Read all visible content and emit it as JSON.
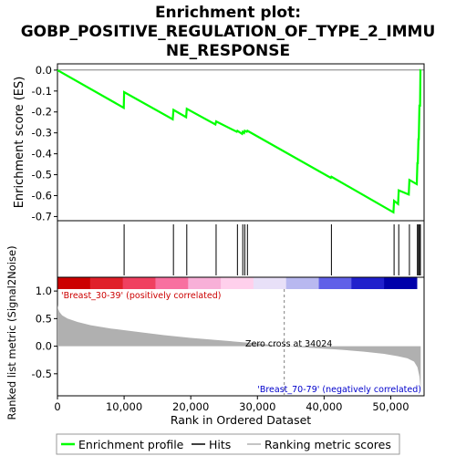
{
  "title_line1": "Enrichment plot:",
  "title_line2": "GOBP_POSITIVE_REGULATION_OF_TYPE_2_IMMU",
  "title_line3": "NE_RESPONSE",
  "colors": {
    "es_line": "#00ff00",
    "hit": "#000000",
    "metric_fill": "#b0b0b0",
    "pos_label": "#cc0000",
    "neg_label": "#0000cc",
    "zero_line": "#808080"
  },
  "chart_data": [
    {
      "type": "line",
      "name": "es",
      "ylabel": "Enrichment score (ES)",
      "xlim": [
        0,
        55000
      ],
      "ylim": [
        -0.72,
        0.03
      ],
      "yticks": [
        0.0,
        -0.1,
        -0.2,
        -0.3,
        -0.4,
        -0.5,
        -0.6,
        -0.7
      ],
      "ytick_labels": [
        "0.0",
        "-0.1",
        "-0.2",
        "-0.3",
        "-0.4",
        "-0.5",
        "-0.6",
        "-0.7"
      ],
      "grid": false,
      "x": [
        0,
        9950,
        10000,
        17300,
        17400,
        19300,
        19400,
        23700,
        23800,
        26900,
        27000,
        27700,
        27800,
        28000,
        28100,
        28400,
        28500,
        41000,
        41100,
        50400,
        50500,
        51100,
        51200,
        52700,
        52800,
        53900,
        54000,
        54050,
        54150,
        54200,
        54300,
        54400,
        54450,
        54500
      ],
      "y": [
        0.0,
        -0.18,
        -0.105,
        -0.235,
        -0.19,
        -0.225,
        -0.185,
        -0.26,
        -0.245,
        -0.295,
        -0.29,
        -0.305,
        -0.295,
        -0.3,
        -0.29,
        -0.295,
        -0.29,
        -0.515,
        -0.51,
        -0.68,
        -0.625,
        -0.64,
        -0.575,
        -0.595,
        -0.525,
        -0.545,
        -0.44,
        -0.45,
        -0.33,
        -0.33,
        -0.17,
        -0.17,
        0.0,
        0.0
      ]
    },
    {
      "type": "scatter",
      "name": "hits",
      "x": [
        10000,
        17400,
        19400,
        23800,
        27000,
        27800,
        28100,
        28500,
        41100,
        50500,
        51200,
        52800,
        54000,
        54150,
        54300,
        54450
      ]
    },
    {
      "type": "area",
      "name": "ranked_metric",
      "ylabel": "Ranked list metric (Signal2Noise)",
      "xlabel": "Rank in Ordered Dataset",
      "xlim": [
        0,
        55000
      ],
      "ylim": [
        -0.9,
        1.25
      ],
      "xticks": [
        0,
        10000,
        20000,
        30000,
        40000,
        50000
      ],
      "xtick_labels": [
        "0",
        "10,000",
        "20,000",
        "30,000",
        "40,000",
        "50,000"
      ],
      "yticks": [
        1.0,
        0.5,
        0.0,
        -0.5
      ],
      "ytick_labels": [
        "1.0",
        "0.5",
        "0.0",
        "-0.5"
      ],
      "x": [
        0,
        100,
        300,
        700,
        1500,
        3000,
        5000,
        8000,
        12000,
        16000,
        20000,
        25000,
        30000,
        34024,
        38000,
        42000,
        46000,
        49000,
        51000,
        52500,
        53500,
        54000,
        54300,
        54500
      ],
      "y": [
        0.75,
        0.68,
        0.62,
        0.56,
        0.5,
        0.44,
        0.38,
        0.32,
        0.26,
        0.2,
        0.15,
        0.1,
        0.05,
        0.0,
        -0.03,
        -0.06,
        -0.1,
        -0.14,
        -0.18,
        -0.22,
        -0.28,
        -0.38,
        -0.55,
        -0.8
      ],
      "zero_cross_rank": 34024
    }
  ],
  "heatmap_bar_colors": [
    "#cc0000",
    "#e0202a",
    "#f04060",
    "#f870a0",
    "#f8b0d8",
    "#ffd0ec",
    "#e8e0f8",
    "#b8b8f0",
    "#6060e8",
    "#2020cc",
    "#0000aa"
  ],
  "annotations": {
    "pos_label": "'Breast_30-39' (positively correlated)",
    "neg_label": "'Breast_70-79' (negatively correlated)",
    "zero_cross": "Zero cross at 34024"
  },
  "legend": {
    "items": [
      {
        "label": "Enrichment profile",
        "color": "#00ff00"
      },
      {
        "label": "Hits",
        "color": "#000000"
      },
      {
        "label": "Ranking metric scores",
        "color": "#b0b0b0"
      }
    ]
  }
}
